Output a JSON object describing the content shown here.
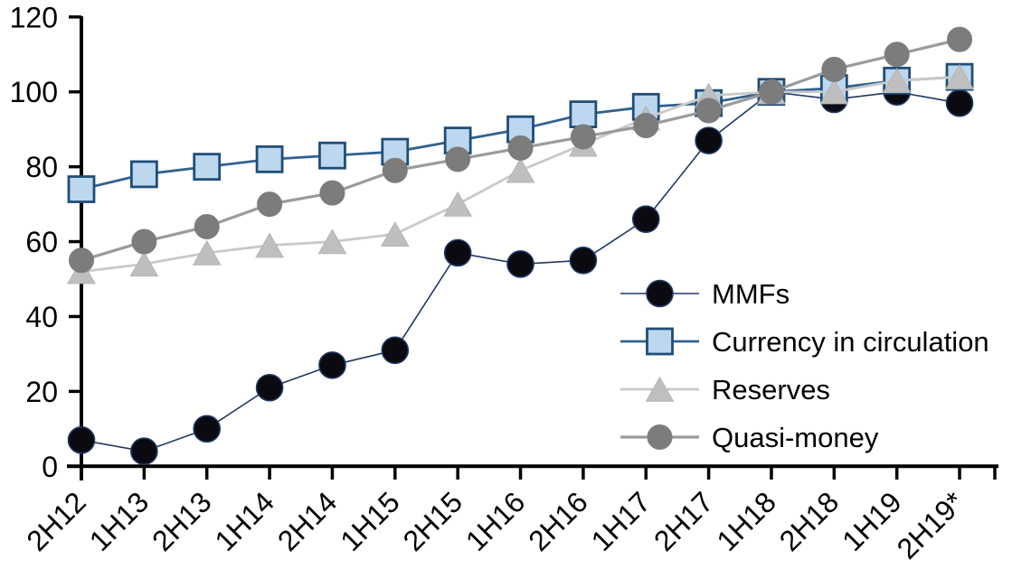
{
  "chart_data": {
    "type": "line",
    "title": "",
    "xlabel": "",
    "ylabel": "",
    "grid": false,
    "categories": [
      "2H12",
      "1H13",
      "2H13",
      "1H14",
      "2H14",
      "1H15",
      "2H15",
      "1H16",
      "2H16",
      "1H17",
      "2H17",
      "1H18",
      "2H18",
      "1H19",
      "2H19*"
    ],
    "series": [
      {
        "name": "MMFs",
        "marker": "circle",
        "marker_size": 29,
        "line_color": "#1F3864",
        "line_width": 1.6,
        "marker_fill": "#0A0A10",
        "marker_stroke": "#1F3864",
        "marker_stroke_width": 1.6,
        "values": [
          7,
          4,
          10,
          21,
          27,
          31,
          57,
          54,
          55,
          66,
          87,
          100,
          98,
          100,
          97
        ]
      },
      {
        "name": "Currency in circulation",
        "marker": "square",
        "marker_size": 28,
        "line_color": "#31628F",
        "line_width": 2.8,
        "marker_fill": "#BDD7EE",
        "marker_stroke": "#1F4E79",
        "marker_stroke_width": 2.8,
        "values": [
          74,
          78,
          80,
          82,
          83,
          84,
          87,
          90,
          94,
          96,
          97,
          100,
          101,
          103,
          104
        ]
      },
      {
        "name": "Reserves",
        "marker": "triangle",
        "marker_size": 30,
        "line_color": "#C9C9C9",
        "line_width": 2.8,
        "marker_fill": "#BFBFBF",
        "marker_stroke": "#B3B3B3",
        "marker_stroke_width": 1,
        "values": [
          52,
          54,
          57,
          59,
          60,
          62,
          70,
          79,
          86,
          93,
          99,
          100,
          100,
          103,
          104
        ]
      },
      {
        "name": "Quasi-money",
        "marker": "circle",
        "marker_size": 27,
        "line_color": "#9B9B9B",
        "line_width": 3.2,
        "marker_fill": "#7C7C7C",
        "marker_stroke": "#7C7C7C",
        "marker_stroke_width": 1,
        "values": [
          55,
          60,
          64,
          70,
          73,
          79,
          82,
          85,
          88,
          91,
          95,
          100,
          106,
          110,
          114
        ]
      }
    ],
    "y_axis": {
      "ticks": [
        0,
        20,
        40,
        60,
        80,
        100,
        120
      ],
      "min": 0,
      "max": 120
    },
    "x_axis": {
      "label_rotation": -45
    },
    "legend": {
      "position": "inside-right-middle",
      "entries": [
        "MMFs",
        "Currency in circulation",
        "Reserves",
        "Quasi-money"
      ]
    }
  },
  "colors": {
    "axis": "#000000",
    "label_text": "#000000",
    "background": "#FFFFFF"
  }
}
